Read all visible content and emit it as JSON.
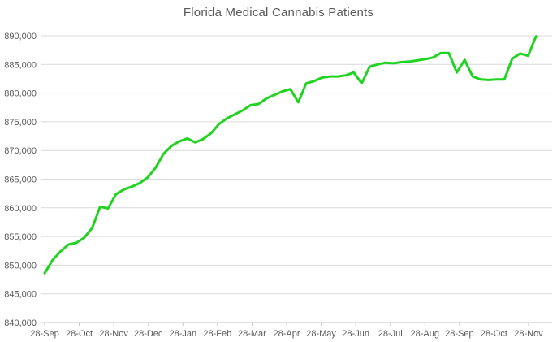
{
  "chart_data": {
    "type": "line",
    "title": "Florida Medical Cannabis Patients",
    "xlabel": "",
    "ylabel": "",
    "x_unit": "weekly observations",
    "x_tick_labels": [
      "28-Sep",
      "28-Oct",
      "28-Nov",
      "28-Dec",
      "28-Jan",
      "28-Feb",
      "28-Mar",
      "28-Apr",
      "28-May",
      "28-Jun",
      "28-Jul",
      "28-Aug",
      "28-Sep",
      "28-Oct",
      "28-Nov"
    ],
    "y_tick_labels": [
      "840,000",
      "845,000",
      "850,000",
      "855,000",
      "860,000",
      "865,000",
      "870,000",
      "875,000",
      "880,000",
      "885,000",
      "890,000"
    ],
    "y_tick_step": 5000,
    "ylim": [
      840000,
      890000
    ],
    "grid": true,
    "legend": "none",
    "series_name": "Patients",
    "values": [
      848600,
      850900,
      852400,
      853600,
      853900,
      854800,
      856500,
      860200,
      859900,
      862400,
      863200,
      863700,
      864300,
      865300,
      867000,
      869400,
      870800,
      871600,
      872100,
      871400,
      872000,
      873000,
      874600,
      875600,
      876300,
      877000,
      877900,
      878100,
      879100,
      879700,
      880300,
      880700,
      878400,
      881700,
      882100,
      882700,
      882900,
      882900,
      883100,
      883600,
      881700,
      884600,
      885000,
      885300,
      885200,
      885400,
      885500,
      885700,
      885900,
      886200,
      887000,
      887000,
      883600,
      885800,
      882900,
      882400,
      882300,
      882400,
      882400,
      886000,
      886900,
      886500,
      889900
    ],
    "colors": {
      "line": "#21d321",
      "gridline": "#d9d9d9",
      "axis_line": "#c6c6c6",
      "tick_text": "#595959",
      "title_text": "#595959",
      "background": "#ffffff"
    }
  }
}
